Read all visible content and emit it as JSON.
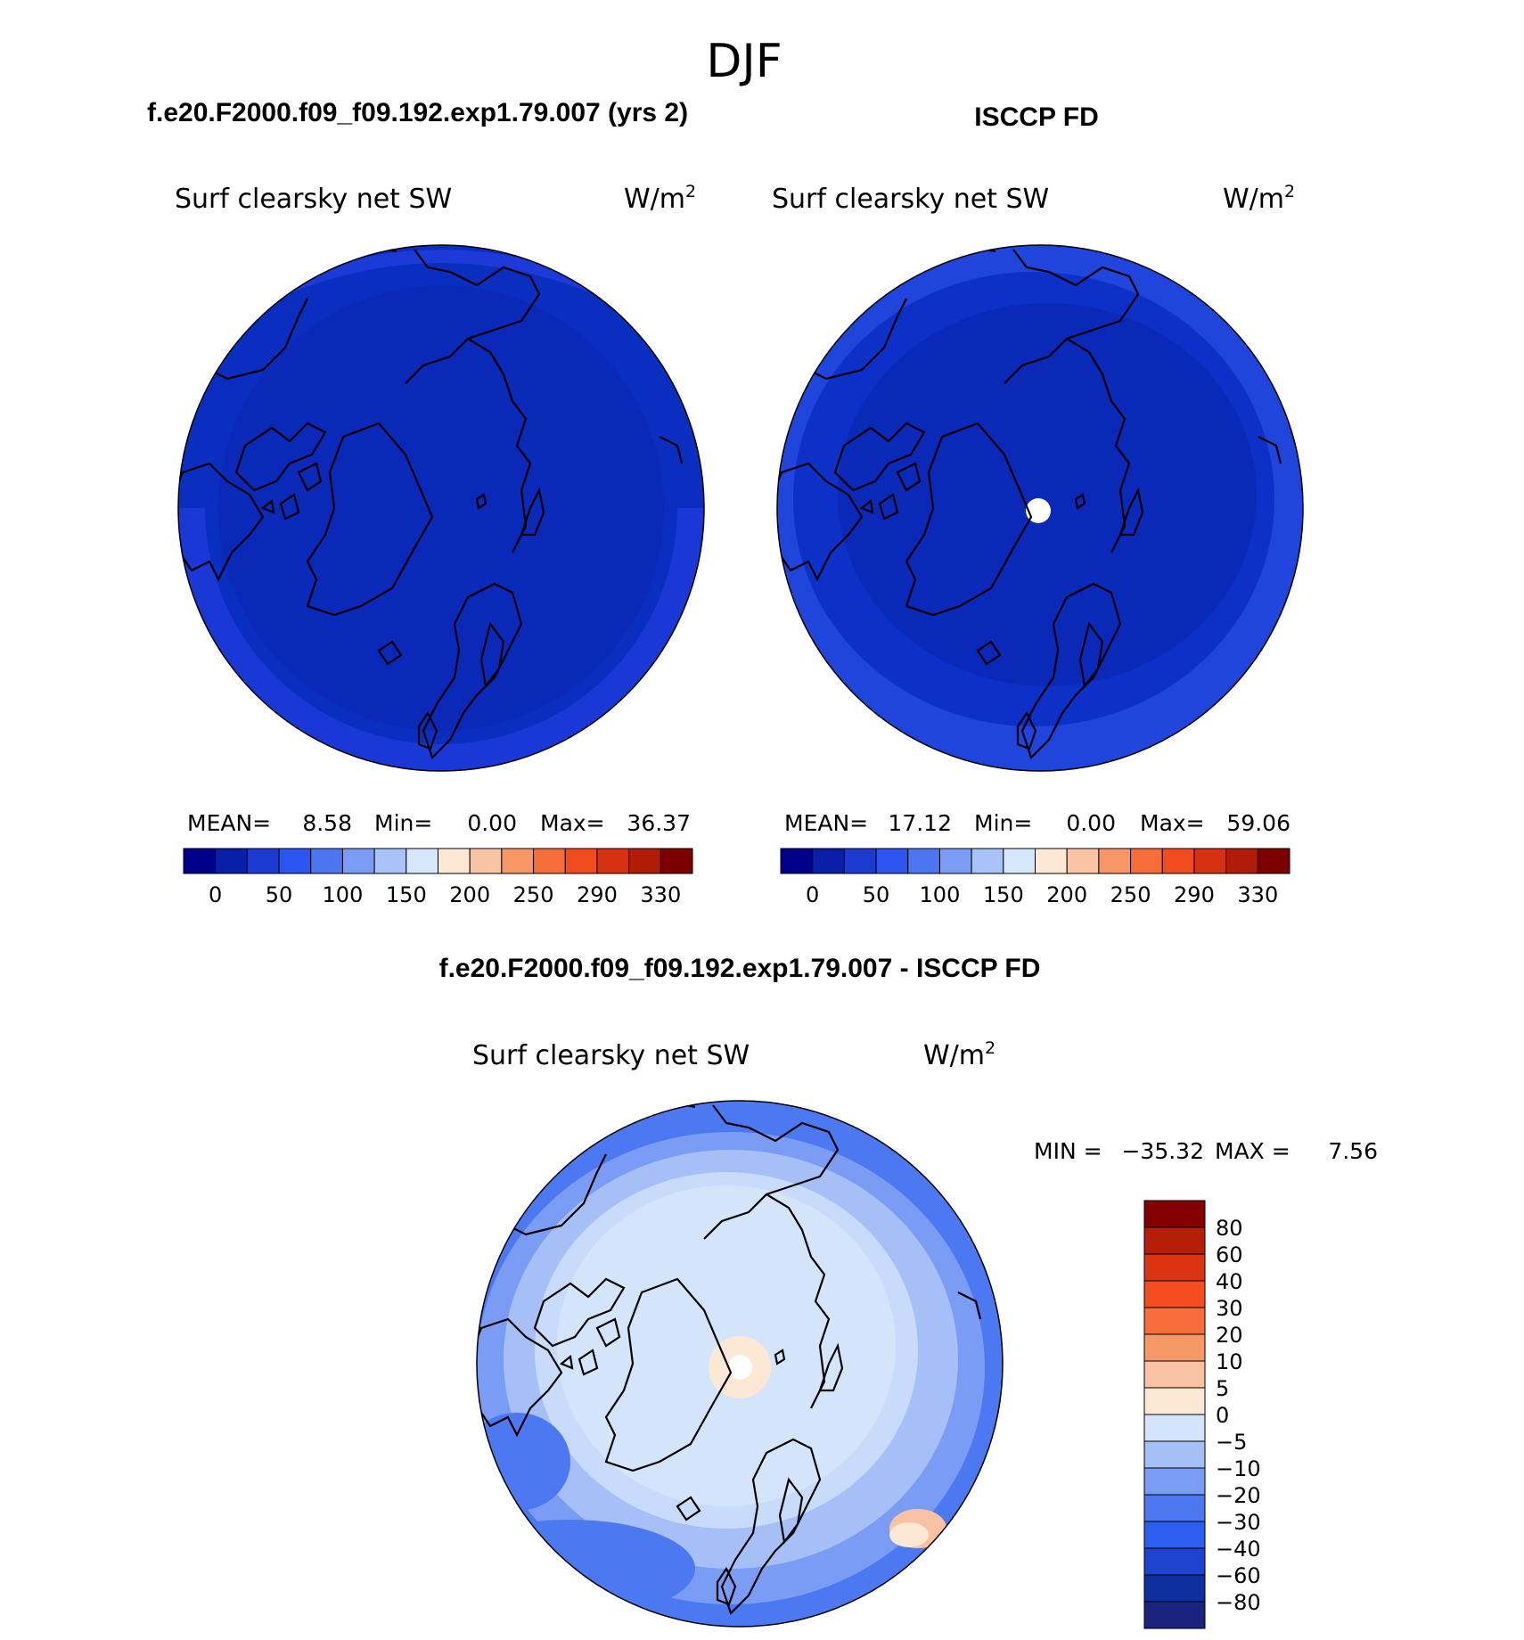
{
  "figure": {
    "title": "DJF"
  },
  "colors": {
    "abs_scale": [
      "#00008b",
      "#0a1fa8",
      "#1c3ad0",
      "#2b55ee",
      "#4c76f0",
      "#7a9cf4",
      "#a9c2f8",
      "#d6e6fb",
      "#fde8d6",
      "#f9c4a4",
      "#f79768",
      "#f76d3a",
      "#f14c1e",
      "#d63212",
      "#b01c08",
      "#7d0000"
    ],
    "diff_scale": [
      "#1a237e",
      "#0d2fa0",
      "#1d43d0",
      "#2e5ef0",
      "#4c79f2",
      "#7a9cf4",
      "#a6c0f7",
      "#d4e5fb",
      "#fde7d5",
      "#f9c3a3",
      "#f79868",
      "#f76e3c",
      "#f44e20",
      "#dc3412",
      "#b51f08",
      "#840000"
    ],
    "coast": "#000000"
  },
  "panels": [
    {
      "header": "f.e20.F2000.f09_f09.192.exp1.79.007 (yrs 2)",
      "variable": "Surf clearsky net SW",
      "units": "W/m",
      "units_exp": "2",
      "stats": {
        "mean_label": "MEAN=",
        "mean": "8.58",
        "min_label": "Min=",
        "min": "0.00",
        "max_label": "Max=",
        "max": "36.37"
      },
      "colorbar_labels": [
        "0",
        "50",
        "100",
        "150",
        "200",
        "250",
        "290",
        "330"
      ]
    },
    {
      "header": "ISCCP FD",
      "variable": "Surf clearsky net SW",
      "units": "W/m",
      "units_exp": "2",
      "stats": {
        "mean_label": "MEAN=",
        "mean": "17.12",
        "min_label": "Min=",
        "min": "0.00",
        "max_label": "Max=",
        "max": "59.06"
      },
      "colorbar_labels": [
        "0",
        "50",
        "100",
        "150",
        "200",
        "250",
        "290",
        "330"
      ]
    },
    {
      "header": "f.e20.F2000.f09_f09.192.exp1.79.007 - ISCCP FD",
      "variable": "Surf clearsky net SW",
      "units": "W/m",
      "units_exp": "2",
      "stats": {
        "min_label": "MIN =",
        "min": "−35.32",
        "max_label": "MAX =",
        "max": "7.56"
      },
      "colorbar_labels": [
        "80",
        "60",
        "40",
        "30",
        "20",
        "10",
        "5",
        "0",
        "−5",
        "−10",
        "−20",
        "−30",
        "−40",
        "−60",
        "−80"
      ]
    }
  ]
}
